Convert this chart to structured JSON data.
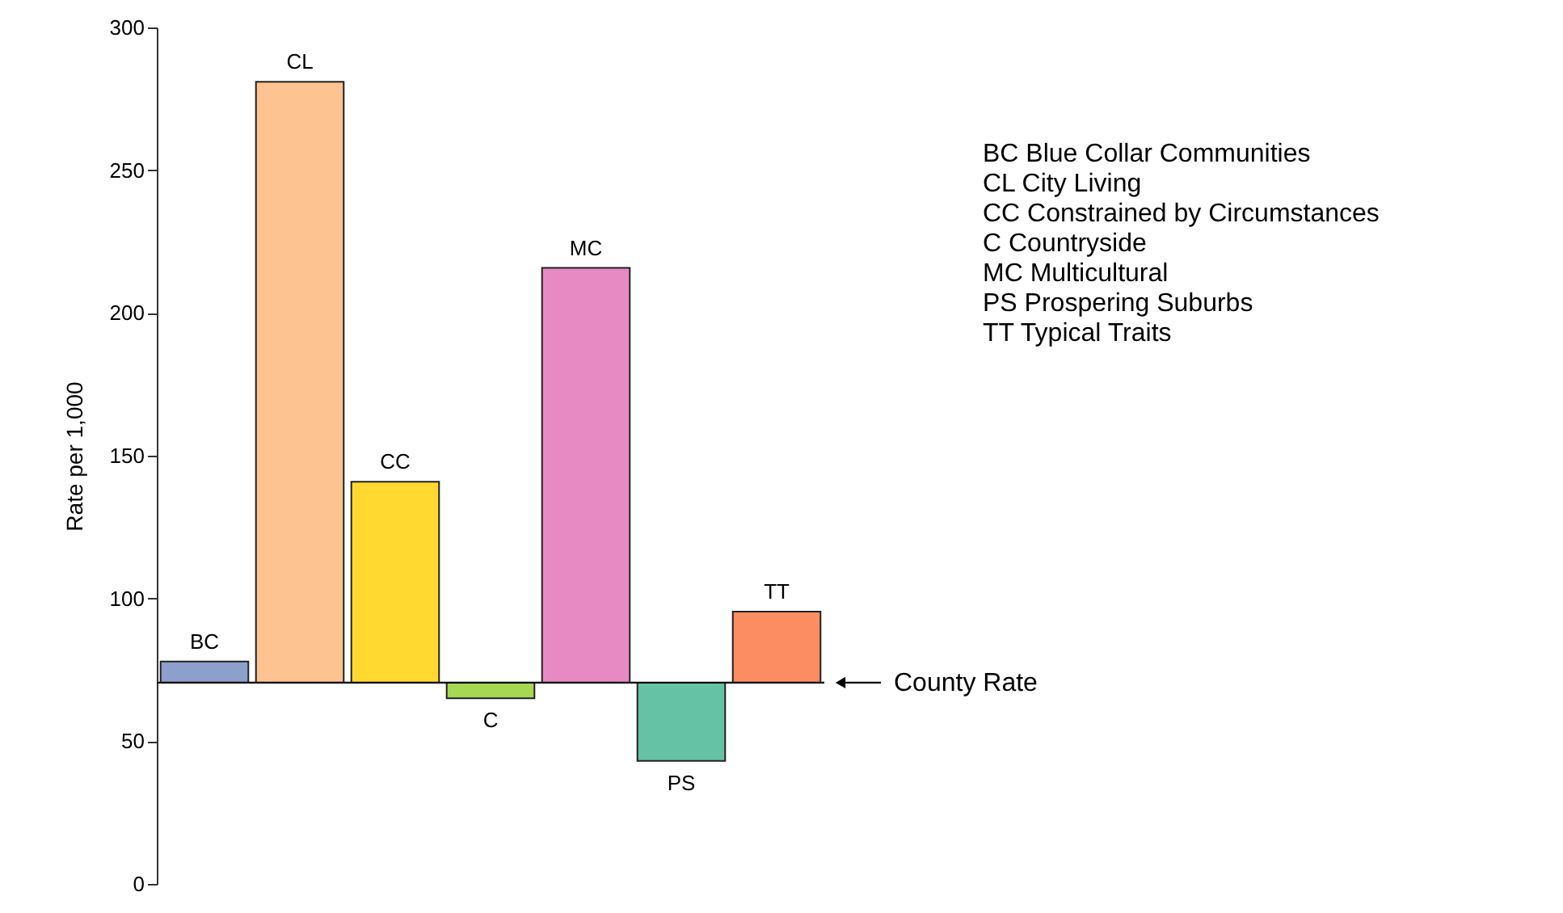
{
  "chart_data": {
    "type": "bar",
    "categories": [
      "BC",
      "CL",
      "CC",
      "C",
      "MC",
      "PS",
      "TT"
    ],
    "base": [
      70.5,
      70.5,
      70.5,
      70.5,
      70.5,
      70.5,
      70.5
    ],
    "values": [
      7.4,
      210.5,
      70.4,
      -5.5,
      145.3,
      -27.4,
      24.9
    ],
    "colors": [
      "#8da0cb",
      "#fdc391",
      "#ffd92f",
      "#a6d854",
      "#e78ac3",
      "#66c2a5",
      "#fc8d62"
    ],
    "ylabel": "Rate per 1,000",
    "ylim": [
      0,
      300
    ],
    "yticks": [
      0,
      50,
      100,
      150,
      200,
      250,
      300
    ],
    "ref_lines": [
      {
        "axis": "y",
        "value": 70.5,
        "label": "County Rate"
      }
    ],
    "annotations": [
      "BC Blue Collar Communities",
      "CL City Living",
      "CC Constrained by Circumstances",
      "C Countryside",
      "MC Multicultural",
      "PS Prospering Suburbs",
      "TT Typical Traits"
    ],
    "tick_labels": "y",
    "grid": false
  }
}
